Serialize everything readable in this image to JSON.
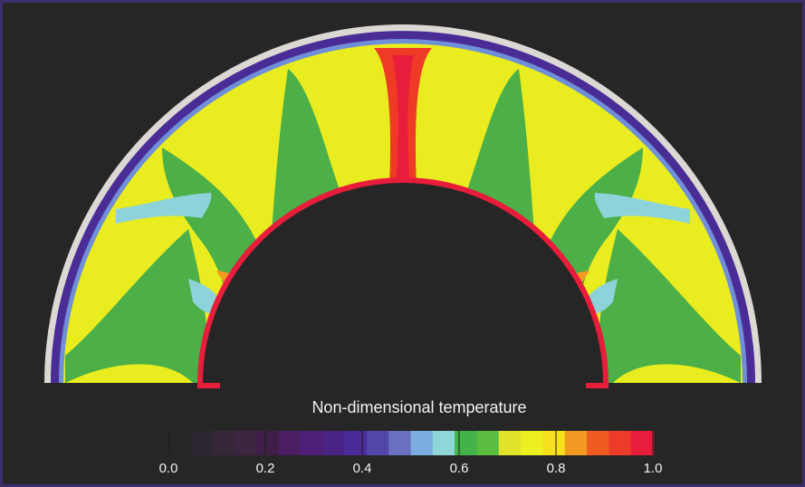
{
  "figure": {
    "colorbar": {
      "title": "Non-dimensional temperature",
      "ticks": [
        "0.0",
        "0.2",
        "0.4",
        "0.6",
        "0.8",
        "1.0"
      ],
      "range": [
        0.0,
        1.0
      ],
      "colors": [
        "#262626",
        "#2c2630",
        "#352638",
        "#3c2540",
        "#3f1f48",
        "#4a1d65",
        "#4e1f78",
        "#4b2385",
        "#4b2b9a",
        "#5047a8",
        "#6a6fc0",
        "#7aaee0",
        "#8ed6d8",
        "#43b248",
        "#5bbd3f",
        "#e1e22a",
        "#ecef20",
        "#f7e01c",
        "#f19a22",
        "#f05b22",
        "#ec3b27",
        "#e81d3b"
      ]
    },
    "field_colors": {
      "outer_shell": "#dcd8d4",
      "cold_boundary": "#4a2c96",
      "boundary_inner": "#6f8fd8",
      "background_interior": "#e9ec1f",
      "cool_plume": "#4caf47",
      "cyan_pocket": "#8ed3d9",
      "hot_plume": "#ef3b26",
      "hot_core": "#e81d3b",
      "orange_edge": "#f59a21"
    }
  }
}
